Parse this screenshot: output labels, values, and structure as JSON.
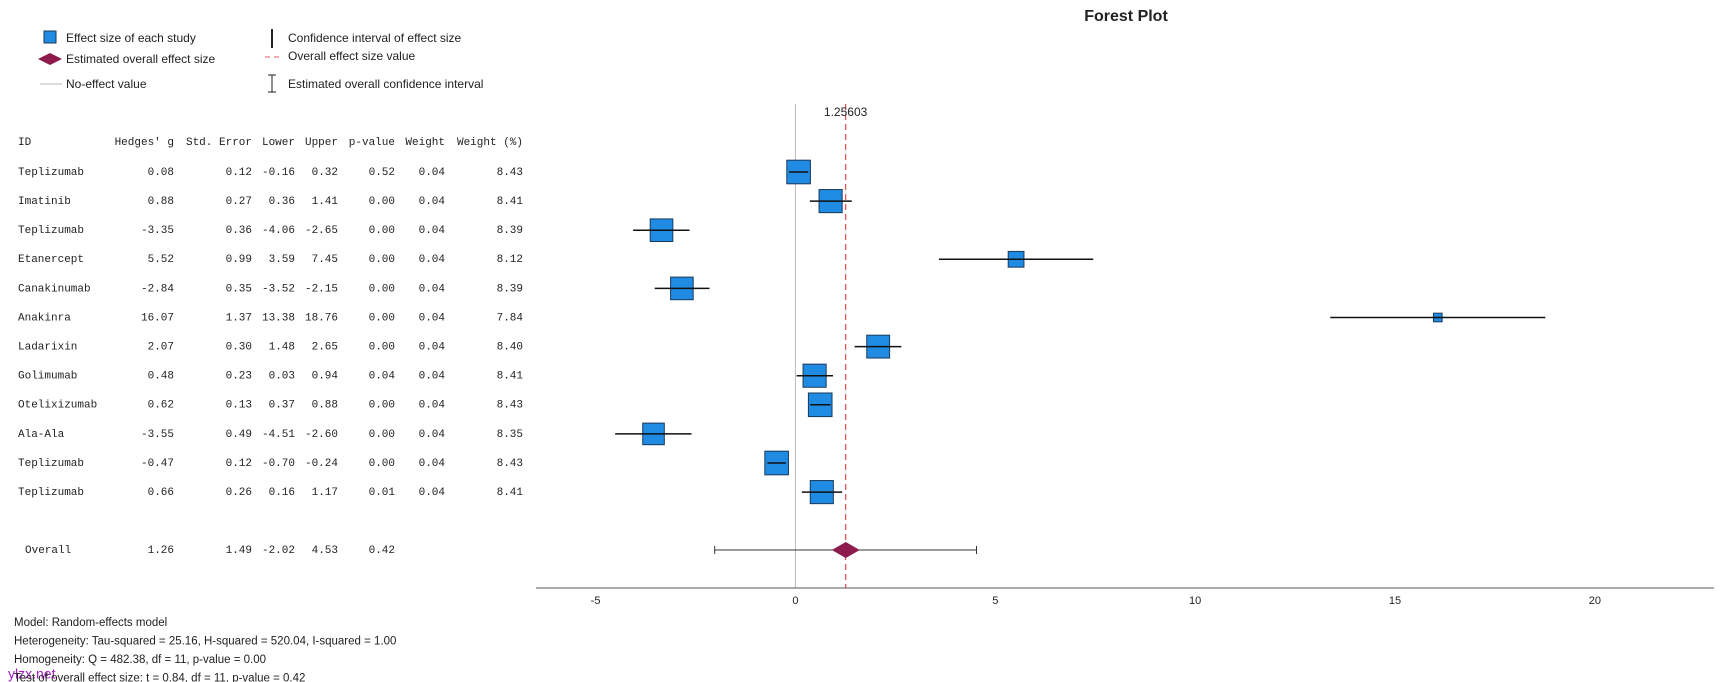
{
  "chart_data": {
    "type": "forest",
    "title": "Forest Plot",
    "legend": [
      "Effect size of each study",
      "Estimated overall effect size",
      "No-effect value",
      "Confidence interval of effect size",
      "Overall effect size value",
      "Estimated overall confidence interval"
    ],
    "id_header": "ID",
    "categories": [
      "Teplizumab",
      "Imatinib",
      "Teplizumab",
      "Etanercept",
      "Canakinumab",
      "Anakinra",
      "Ladarixin",
      "Golimumab",
      "Otelixizumab",
      "Ala-Ala",
      "Teplizumab",
      "Teplizumab"
    ],
    "series": [
      {
        "name": "Hedges' g",
        "values": [
          0.08,
          0.88,
          -3.35,
          5.52,
          -2.84,
          16.07,
          2.07,
          0.48,
          0.62,
          -3.55,
          -0.47,
          0.66
        ],
        "value_labels": [
          "0.08",
          "0.88",
          "-3.35",
          "5.52",
          "-2.84",
          "16.07",
          "2.07",
          "0.48",
          "0.62",
          "-3.55",
          "-0.47",
          "0.66"
        ]
      },
      {
        "name": "Std. Error",
        "values": [
          0.12,
          0.27,
          0.36,
          0.99,
          0.35,
          1.37,
          0.3,
          0.23,
          0.13,
          0.49,
          0.12,
          0.26
        ],
        "value_labels": [
          "0.12",
          "0.27",
          "0.36",
          "0.99",
          "0.35",
          "1.37",
          "0.30",
          "0.23",
          "0.13",
          "0.49",
          "0.12",
          "0.26"
        ]
      },
      {
        "name": "Lower",
        "values": [
          -0.16,
          0.36,
          -4.06,
          3.59,
          -3.52,
          13.38,
          1.48,
          0.03,
          0.37,
          -4.51,
          -0.7,
          0.16
        ],
        "value_labels": [
          "-0.16",
          "0.36",
          "-4.06",
          "3.59",
          "-3.52",
          "13.38",
          "1.48",
          "0.03",
          "0.37",
          "-4.51",
          "-0.70",
          "0.16"
        ]
      },
      {
        "name": "Upper",
        "values": [
          0.32,
          1.41,
          -2.65,
          7.45,
          -2.15,
          18.76,
          2.65,
          0.94,
          0.88,
          -2.6,
          -0.24,
          1.17
        ],
        "value_labels": [
          "0.32",
          "1.41",
          "-2.65",
          "7.45",
          "-2.15",
          "18.76",
          "2.65",
          "0.94",
          "0.88",
          "-2.60",
          "-0.24",
          "1.17"
        ]
      },
      {
        "name": "p-value",
        "values": [
          0.52,
          0,
          0,
          0,
          0,
          0,
          0,
          0.04,
          0,
          0,
          0,
          0.01
        ],
        "value_labels": [
          "0.52",
          "0.00",
          "0.00",
          "0.00",
          "0.00",
          "0.00",
          "0.00",
          "0.04",
          "0.00",
          "0.00",
          "0.00",
          "0.01"
        ]
      },
      {
        "name": "Weight",
        "values": [
          0.04,
          0.04,
          0.04,
          0.04,
          0.04,
          0.04,
          0.04,
          0.04,
          0.04,
          0.04,
          0.04,
          0.04
        ],
        "value_labels": [
          "0.04",
          "0.04",
          "0.04",
          "0.04",
          "0.04",
          "0.04",
          "0.04",
          "0.04",
          "0.04",
          "0.04",
          "0.04",
          "0.04"
        ]
      },
      {
        "name": "Weight (%)",
        "values": [
          8.43,
          8.41,
          8.39,
          8.12,
          8.39,
          7.84,
          8.4,
          8.41,
          8.43,
          8.35,
          8.43,
          8.41
        ],
        "value_labels": [
          "8.43",
          "8.41",
          "8.39",
          "8.12",
          "8.39",
          "7.84",
          "8.40",
          "8.41",
          "8.43",
          "8.35",
          "8.43",
          "8.41"
        ]
      }
    ],
    "overall": {
      "name": "Overall",
      "values": [
        1.26,
        1.49,
        -2.02,
        4.53,
        0.42
      ],
      "estimate": 1.25603
    },
    "no_effect": 0,
    "xlim": [
      -6.49,
      22.98
    ],
    "xticks": [
      -5,
      0,
      5,
      10,
      15,
      20
    ],
    "colors": {
      "study": "#1f8be3",
      "overall": "#8e1b4e",
      "reference": "#e05a5a"
    },
    "notes": [
      "Model: Random-effects model",
      "Heterogeneity: Tau-squared = 25.16, H-squared = 520.04, I-squared = 1.00",
      "Homogeneity: Q = 482.38, df = 11, p-value = 0.00",
      "Test of overall effect size: t = 0.84, df = 11, p-value = 0.42"
    ],
    "watermark": "ylzx.net"
  }
}
